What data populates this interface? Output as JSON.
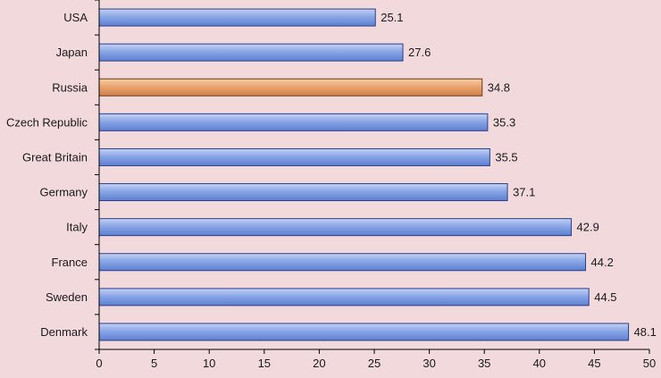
{
  "chart_data": {
    "type": "bar",
    "orientation": "horizontal",
    "title": "",
    "xlabel": "",
    "ylabel": "",
    "categories": [
      "USA",
      "Japan",
      "Russia",
      "Czech Republic",
      "Great Britain",
      "Germany",
      "Italy",
      "France",
      "Sweden",
      "Denmark"
    ],
    "values": [
      25.1,
      27.6,
      34.8,
      35.3,
      35.5,
      37.1,
      42.9,
      44.2,
      44.5,
      48.1
    ],
    "value_labels": [
      "25.1",
      "27.6",
      "34.8",
      "35.3",
      "35.5",
      "37.1",
      "42.9",
      "44.2",
      "44.5",
      "48.1"
    ],
    "highlight_category": "Russia",
    "xlim": [
      0,
      50
    ],
    "xticks": [
      0,
      5,
      10,
      15,
      20,
      25,
      30,
      35,
      40,
      45,
      50
    ],
    "xtick_labels": [
      "0",
      "5",
      "10",
      "15",
      "20",
      "25",
      "30",
      "35",
      "40",
      "45",
      "50"
    ],
    "grid": false,
    "legend": "none",
    "colors": {
      "background": "#f2d9dc",
      "bar_default": "#7f9fe0",
      "bar_highlight": "#e8a16a",
      "axis": "#000000"
    }
  }
}
